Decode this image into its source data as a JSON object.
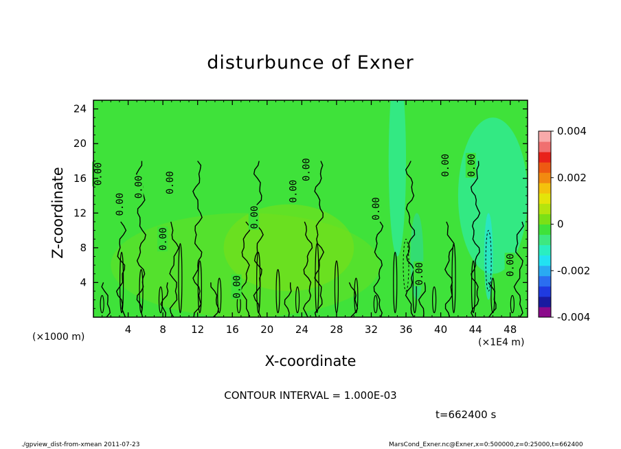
{
  "chart_data": {
    "type": "heatmap",
    "title": "disturbunce of Exner",
    "xlabel": "X-coordinate",
    "ylabel": "Z-coordinate",
    "x_unit_left": "(×1000 m)",
    "x_unit_right": "(×1E4 m)",
    "x_ticks": [
      "4",
      "8",
      "12",
      "16",
      "20",
      "24",
      "28",
      "32",
      "36",
      "40",
      "44",
      "48"
    ],
    "x_tick_values": [
      4,
      8,
      12,
      16,
      20,
      24,
      28,
      32,
      36,
      40,
      44,
      48
    ],
    "xlim": [
      0,
      50
    ],
    "y_ticks": [
      "4",
      "8",
      "12",
      "16",
      "20",
      "24"
    ],
    "y_tick_values": [
      4,
      8,
      12,
      16,
      20,
      24
    ],
    "ylim": [
      0,
      25
    ],
    "colorbar": {
      "ticks": [
        "0.004",
        "0.002",
        "0",
        "-0.002",
        "-0.004"
      ],
      "tick_values": [
        0.004,
        0.002,
        0,
        -0.002,
        -0.004
      ],
      "range": [
        -0.004,
        0.004
      ],
      "colors": [
        "#8b0a8b",
        "#1a1aa0",
        "#1f3ae0",
        "#2b6ef0",
        "#2aaaf2",
        "#22e2f2",
        "#2aeec0",
        "#3ee880",
        "#3fe23a",
        "#7be016",
        "#b4e40e",
        "#e4e40a",
        "#f4c20c",
        "#f28a10",
        "#ee5a12",
        "#e8221a",
        "#f07070",
        "#f8aaaa"
      ]
    },
    "contour_labels": [
      {
        "text": "0.00",
        "x": 0.5,
        "z": 16.5
      },
      {
        "text": "0.00",
        "x": 3.0,
        "z": 13.0
      },
      {
        "text": "0.00",
        "x": 5.2,
        "z": 15.0
      },
      {
        "text": "0.00",
        "x": 8.0,
        "z": 9.0
      },
      {
        "text": "0.00",
        "x": 8.8,
        "z": 15.5
      },
      {
        "text": "0.00",
        "x": 16.5,
        "z": 3.5
      },
      {
        "text": "0.00",
        "x": 18.5,
        "z": 11.5
      },
      {
        "text": "0.00",
        "x": 23.0,
        "z": 14.5
      },
      {
        "text": "0.00",
        "x": 24.5,
        "z": 17.0
      },
      {
        "text": "0.00",
        "x": 32.5,
        "z": 12.5
      },
      {
        "text": "0.00",
        "x": 37.5,
        "z": 5.0
      },
      {
        "text": "0.00",
        "x": 40.5,
        "z": 17.5
      },
      {
        "text": "0.00",
        "x": 43.5,
        "z": 17.5
      },
      {
        "text": "0.00",
        "x": 48.0,
        "z": 6.0
      }
    ],
    "background_value": 0.0,
    "grid": false,
    "legend": "colorbar-right"
  },
  "contour_interval": "CONTOUR INTERVAL = 1.000E-03",
  "time": "t=662400 s",
  "footer_left": "./gpview_dist-from-xmean  2011-07-23",
  "footer_right": "MarsCond_Exner.nc@Exner,x=0:500000,z=0:25000,t=662400"
}
